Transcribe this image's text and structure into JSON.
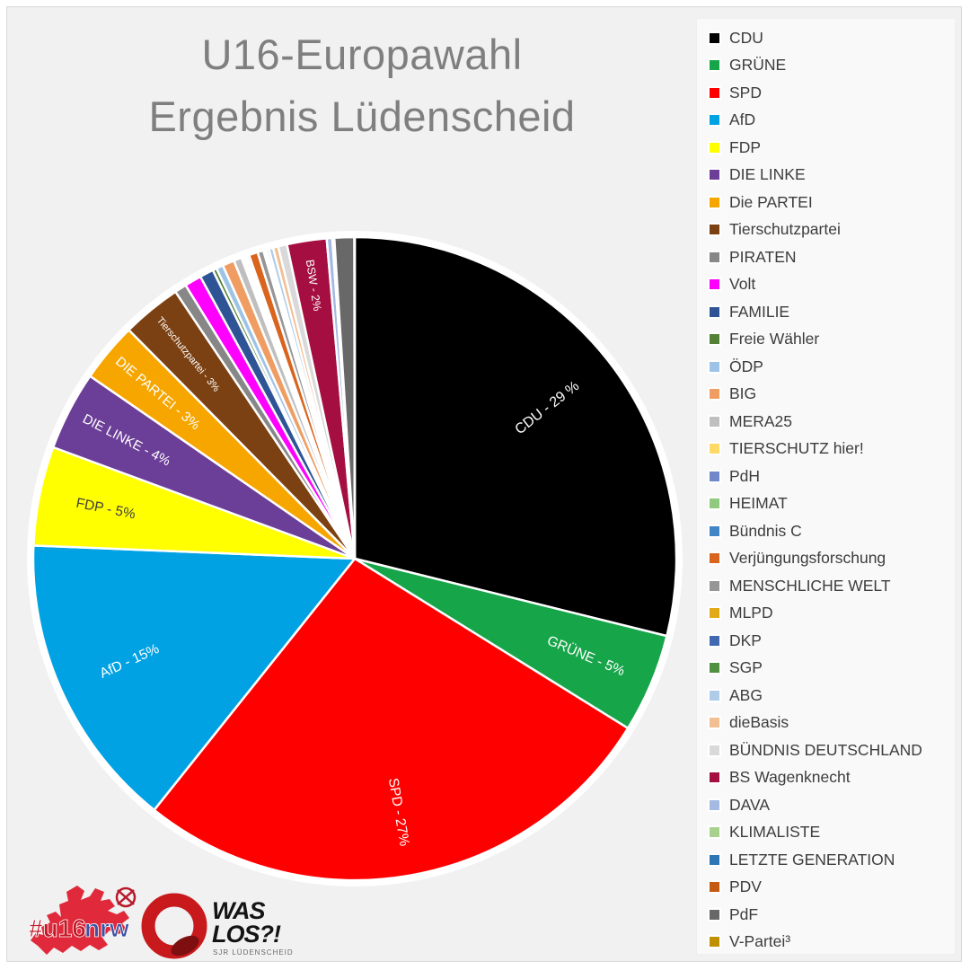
{
  "title": {
    "line1": "U16-Europawahl",
    "line2": "Ergebnis Lüdenscheid"
  },
  "theme": {
    "page_background": "#ffffff",
    "content_background": "#f1f1f1",
    "legend_background": "#f9f9f9",
    "title_color": "#7f7f7f",
    "legend_text_color": "#3d3d3d",
    "slice_separator_color": "#ffffff"
  },
  "chart_data": {
    "type": "pie",
    "title": "U16-Europawahl Ergebnis Lüdenscheid",
    "start_angle_deg": 0,
    "direction": "clockwise",
    "legend_position": "right",
    "grid": false,
    "slices": [
      {
        "name": "CDU",
        "value": 29,
        "color": "#000000",
        "label": "CDU - 29 %",
        "label_color": "#ffffff",
        "label_size": 16,
        "label_radius": 0.76
      },
      {
        "name": "GRÜNE",
        "value": 5,
        "color": "#17a54a",
        "label": "GRÜNE - 5%",
        "label_color": "#ffffff",
        "label_size": 15.5,
        "label_radius": 0.78
      },
      {
        "name": "SPD",
        "value": 27,
        "color": "#ff0000",
        "label": "SPD - 27%",
        "label_color": "#ffffff",
        "label_size": 15.5,
        "label_radius": 0.8
      },
      {
        "name": "AfD",
        "value": 15,
        "color": "#00a2e4",
        "label": "AfD - 15%",
        "label_color": "#ffffff",
        "label_size": 15.5,
        "label_radius": 0.77
      },
      {
        "name": "FDP",
        "value": 5,
        "color": "#ffff00",
        "label": "FDP - 5%",
        "label_color": "#3f3f3f",
        "label_size": 15.5,
        "label_radius": 0.79
      },
      {
        "name": "DIE LINKE",
        "value": 4,
        "color": "#6b3e98",
        "label": "DIE LINKE - 4%",
        "label_color": "#ffffff",
        "label_size": 15,
        "label_radius": 0.8
      },
      {
        "name": "Die PARTEI",
        "value": 3,
        "color": "#f7a600",
        "label": "DIE PARTEI - 3%",
        "label_color": "#ffffff",
        "label_size": 15,
        "label_radius": 0.8
      },
      {
        "name": "Tierschutzpartei",
        "value": 3,
        "color": "#7c4112",
        "label": "Tierschutzpartei - 3%",
        "label_color": "#ffffff",
        "label_size": 11,
        "label_radius": 0.82
      },
      {
        "name": "PIRATEN",
        "value": 0.6,
        "color": "#878787"
      },
      {
        "name": "Volt",
        "value": 0.85,
        "color": "#ff00ff"
      },
      {
        "name": "FAMILIE",
        "value": 0.7,
        "color": "#2f5496"
      },
      {
        "name": "Freie Wähler",
        "value": 0.2,
        "color": "#538135"
      },
      {
        "name": "ÖDP",
        "value": 0.35,
        "color": "#9dc3e6"
      },
      {
        "name": "BIG",
        "value": 0.6,
        "color": "#ef9d63"
      },
      {
        "name": "MERA25",
        "value": 0.4,
        "color": "#bfbfbf"
      },
      {
        "name": "TIERSCHUTZ hier!",
        "value": 0.12,
        "color": "#ffd966"
      },
      {
        "name": "PdH",
        "value": 0.08,
        "color": "#7088c9"
      },
      {
        "name": "HEIMAT",
        "value": 0.08,
        "color": "#8fca7e"
      },
      {
        "name": "Bündnis C",
        "value": 0.12,
        "color": "#4285c6"
      },
      {
        "name": "Verjüngungsforschung",
        "value": 0.45,
        "color": "#d9641e"
      },
      {
        "name": "MENSCHLICHE WELT",
        "value": 0.3,
        "color": "#969696"
      },
      {
        "name": "MLPD",
        "value": 0.1,
        "color": "#e3aa17"
      },
      {
        "name": "DKP",
        "value": 0.06,
        "color": "#4169b1"
      },
      {
        "name": "SGP",
        "value": 0.12,
        "color": "#4f9141"
      },
      {
        "name": "ABG",
        "value": 0.22,
        "color": "#aecbe8"
      },
      {
        "name": "dieBasis",
        "value": 0.26,
        "color": "#f3be92"
      },
      {
        "name": "BÜNDNIS DEUTSCHLAND",
        "value": 0.45,
        "color": "#d9d9d9"
      },
      {
        "name": "BS Wagenknecht",
        "value": 2,
        "color": "#a40e41",
        "label": "BSW - 2%",
        "label_color": "#ffffff",
        "label_size": 12.5,
        "label_radius": 0.86
      },
      {
        "name": "DAVA",
        "value": 0.28,
        "color": "#a4bae3"
      },
      {
        "name": "KLIMALISTE",
        "value": 0.02,
        "color": "#a9d18e"
      },
      {
        "name": "LETZTE GENERATION",
        "value": 0.06,
        "color": "#2e75b6"
      },
      {
        "name": "PDV",
        "value": 0.02,
        "color": "#c55a11"
      },
      {
        "name": "PdF",
        "value": 1.0,
        "color": "#686868"
      },
      {
        "name": "V-Partei³",
        "value": 0.02,
        "color": "#bf9000"
      }
    ]
  },
  "footer": {
    "u16_logo": {
      "hash": "#",
      "u16": "u16",
      "nrw": "nrw"
    },
    "waslos_logo": {
      "line1": "WAS",
      "line2": "LOS?!",
      "subtitle": "SJR LÜDENSCHEID"
    }
  }
}
